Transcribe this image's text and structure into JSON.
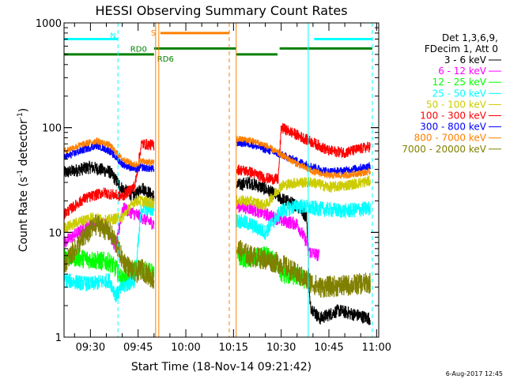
{
  "chart_data": {
    "type": "line",
    "title": "HESSI Observing Summary Count Rates",
    "xlabel": "Start Time (18-Nov-14 09:21:42)",
    "ylabel": "Count Rate (s⁻¹ detector⁻¹)",
    "ylabel_main": "Count Rate (s",
    "ylabel_sup1": "-1",
    "ylabel_mid": " detector",
    "ylabel_sup2": "-1",
    "ylabel_end": ")",
    "yscale": "log",
    "ylim": [
      1,
      1000
    ],
    "xlim": [
      "09:21:42",
      "11:00:40"
    ],
    "xticks": [
      "09:30",
      "09:45",
      "10:00",
      "10:15",
      "10:30",
      "10:45",
      "11:00"
    ],
    "yticks": [
      "1",
      "10",
      "100",
      "1000"
    ],
    "legend": {
      "placement": "right",
      "header1": "Det 1,3,6,9,",
      "header2": "FDecim 1, Att 0"
    },
    "footer": "6-Aug-2017 12:45",
    "flags": [
      {
        "label": "N",
        "color": "#00ffff",
        "segments": [
          [
            "09:21:42",
            "09:38:40"
          ],
          [
            "10:40:20",
            "10:58:40"
          ]
        ],
        "level": 700
      },
      {
        "label": "S",
        "color": "#ff8000",
        "segments": [
          [
            "09:52:00",
            "10:13:40"
          ]
        ],
        "level": 800
      },
      {
        "label": "RD0",
        "color": "#008000",
        "segments": [
          [
            "09:50:00",
            "10:15:50"
          ],
          [
            "10:29:30",
            "10:58:40"
          ]
        ],
        "level": 570
      },
      {
        "label": "RD6",
        "color": "#008000",
        "segments": [
          [
            "09:21:42",
            "09:50:00"
          ],
          [
            "10:15:50",
            "10:28:50"
          ]
        ],
        "level": 500
      }
    ],
    "vlines": [
      {
        "x": "09:38:40",
        "color": "#00ffff",
        "dashed": true
      },
      {
        "x": "09:50:30",
        "color": "#ff8000",
        "dashed": false
      },
      {
        "x": "09:51:30",
        "color": "#ff8000",
        "dashed": false
      },
      {
        "x": "10:13:40",
        "color": "#ff8000",
        "dashed": true
      },
      {
        "x": "10:15:50",
        "color": "#ff8000",
        "dashed": false
      },
      {
        "x": "10:38:30",
        "color": "#00ffff",
        "dashed": false
      },
      {
        "x": "10:58:40",
        "color": "#00ffff",
        "dashed": true
      }
    ],
    "gap": [
      "09:51:30",
      "10:15:50"
    ],
    "series": [
      {
        "name": "3 - 6 keV",
        "color": "#000000",
        "noise": 0.06,
        "seg1": [
          [
            "09:21:42",
            37
          ],
          [
            "09:30",
            42
          ],
          [
            "09:36",
            38
          ],
          [
            "09:40",
            26
          ],
          [
            "09:44",
            22
          ],
          [
            "09:46",
            27
          ],
          [
            "09:50",
            22
          ]
        ],
        "seg2": [
          [
            "10:16",
            28
          ],
          [
            "10:20",
            30
          ],
          [
            "10:25",
            26
          ],
          [
            "10:29",
            22
          ],
          [
            "10:30",
            21
          ],
          [
            "10:35",
            18
          ],
          [
            "10:38",
            14
          ],
          [
            "10:39",
            2
          ],
          [
            "10:42",
            1.5
          ],
          [
            "10:48",
            1.8
          ],
          [
            "10:58",
            1.5
          ]
        ]
      },
      {
        "name": "6 - 12 keV",
        "color": "#ff00ff",
        "noise": 0.06,
        "seg1": [
          [
            "09:21:42",
            8
          ],
          [
            "09:30",
            12
          ],
          [
            "09:35",
            12
          ],
          [
            "09:38",
            7
          ],
          [
            "09:40",
            17
          ],
          [
            "09:44",
            15
          ],
          [
            "09:46",
            14
          ],
          [
            "09:50",
            12
          ]
        ],
        "seg2": [
          [
            "10:16",
            18
          ],
          [
            "10:20",
            17
          ],
          [
            "10:25",
            15
          ],
          [
            "10:30",
            13
          ],
          [
            "10:35",
            12
          ],
          [
            "10:38",
            8
          ],
          [
            "10:39",
            6.5
          ],
          [
            "10:42",
            6
          ]
        ]
      },
      {
        "name": "12 - 25 keV",
        "color": "#00ff00",
        "noise": 0.09,
        "seg1": [
          [
            "09:21:42",
            6
          ],
          [
            "09:30",
            5.5
          ],
          [
            "09:36",
            5.2
          ],
          [
            "09:38",
            4.5
          ],
          [
            "09:40",
            3.5
          ],
          [
            "09:44",
            4.5
          ],
          [
            "09:46",
            4.5
          ],
          [
            "09:50",
            4
          ]
        ],
        "seg2": [
          [
            "10:16",
            6
          ],
          [
            "10:20",
            5.5
          ],
          [
            "10:25",
            6
          ],
          [
            "10:29",
            5
          ],
          [
            "10:30",
            4
          ],
          [
            "10:35",
            3.8
          ],
          [
            "10:38",
            3.5
          ]
        ]
      },
      {
        "name": "25 - 50 keV",
        "color": "#00ffff",
        "noise": 0.07,
        "seg1": [
          [
            "09:21:42",
            3.5
          ],
          [
            "09:30",
            3.2
          ],
          [
            "09:36",
            3.5
          ],
          [
            "09:38",
            2.5
          ],
          [
            "09:40",
            3
          ],
          [
            "09:44",
            3.5
          ],
          [
            "09:46",
            17
          ],
          [
            "09:50",
            17
          ]
        ],
        "seg2": [
          [
            "10:16",
            13
          ],
          [
            "10:20",
            12
          ],
          [
            "10:25",
            10
          ],
          [
            "10:30",
            16
          ],
          [
            "10:35",
            18
          ],
          [
            "10:40",
            17
          ],
          [
            "10:50",
            16
          ],
          [
            "10:58",
            17
          ]
        ]
      },
      {
        "name": "50 - 100 keV",
        "color": "#cccc00",
        "noise": 0.05,
        "seg1": [
          [
            "09:21:42",
            11
          ],
          [
            "09:30",
            14
          ],
          [
            "09:35",
            13
          ],
          [
            "09:40",
            14
          ],
          [
            "09:44",
            20
          ],
          [
            "09:46",
            20
          ],
          [
            "09:50",
            19
          ]
        ],
        "seg2": [
          [
            "10:16",
            20
          ],
          [
            "10:20",
            20
          ],
          [
            "10:25",
            18
          ],
          [
            "10:30",
            28
          ],
          [
            "10:35",
            30
          ],
          [
            "10:40",
            30
          ],
          [
            "10:45",
            27
          ],
          [
            "10:50",
            28
          ],
          [
            "10:58",
            31
          ]
        ]
      },
      {
        "name": "100 - 300 keV",
        "color": "#ff0000",
        "noise": 0.05,
        "seg1": [
          [
            "09:21:42",
            15
          ],
          [
            "09:28",
            21
          ],
          [
            "09:34",
            24
          ],
          [
            "09:40",
            22
          ],
          [
            "09:44",
            28
          ],
          [
            "09:46",
            70
          ],
          [
            "09:50",
            68
          ]
        ],
        "seg2": [
          [
            "10:16",
            40
          ],
          [
            "10:20",
            38
          ],
          [
            "10:25",
            33
          ],
          [
            "10:29",
            32
          ],
          [
            "10:30",
            100
          ],
          [
            "10:35",
            85
          ],
          [
            "10:40",
            72
          ],
          [
            "10:45",
            60
          ],
          [
            "10:50",
            58
          ],
          [
            "10:58",
            66
          ]
        ]
      },
      {
        "name": "300 - 800 keV",
        "color": "#0000ff",
        "noise": 0.035,
        "seg1": [
          [
            "09:21:42",
            52
          ],
          [
            "09:28",
            62
          ],
          [
            "09:32",
            68
          ],
          [
            "09:36",
            60
          ],
          [
            "09:40",
            45
          ],
          [
            "09:44",
            40
          ],
          [
            "09:46",
            42
          ],
          [
            "09:50",
            40
          ]
        ],
        "seg2": [
          [
            "10:16",
            72
          ],
          [
            "10:20",
            70
          ],
          [
            "10:25",
            62
          ],
          [
            "10:30",
            55
          ],
          [
            "10:35",
            48
          ],
          [
            "10:40",
            42
          ],
          [
            "10:45",
            38
          ],
          [
            "10:50",
            39
          ],
          [
            "10:58",
            43
          ]
        ]
      },
      {
        "name": "800 - 7000 keV",
        "color": "#ff8000",
        "noise": 0.03,
        "seg1": [
          [
            "09:21:42",
            60
          ],
          [
            "09:28",
            70
          ],
          [
            "09:32",
            75
          ],
          [
            "09:36",
            68
          ],
          [
            "09:40",
            50
          ],
          [
            "09:44",
            44
          ],
          [
            "09:46",
            48
          ],
          [
            "09:50",
            46
          ]
        ],
        "seg2": [
          [
            "10:16",
            78
          ],
          [
            "10:20",
            76
          ],
          [
            "10:25",
            68
          ],
          [
            "10:30",
            55
          ],
          [
            "10:35",
            45
          ],
          [
            "10:40",
            38
          ],
          [
            "10:45",
            35
          ],
          [
            "10:50",
            35
          ],
          [
            "10:58",
            38
          ]
        ]
      },
      {
        "name": "7000 - 20000 keV",
        "color": "#808000",
        "noise": 0.1,
        "seg1": [
          [
            "09:21:42",
            5
          ],
          [
            "09:28",
            9
          ],
          [
            "09:32",
            12
          ],
          [
            "09:36",
            10
          ],
          [
            "09:38",
            8
          ],
          [
            "09:40",
            5.5
          ],
          [
            "09:44",
            4
          ],
          [
            "09:46",
            4.5
          ],
          [
            "09:50",
            3.5
          ]
        ],
        "seg2": [
          [
            "10:16",
            7
          ],
          [
            "10:20",
            6
          ],
          [
            "10:25",
            5.5
          ],
          [
            "10:30",
            5
          ],
          [
            "10:35",
            4
          ],
          [
            "10:38",
            3.5
          ],
          [
            "10:42",
            3
          ],
          [
            "10:50",
            3.1
          ],
          [
            "10:58",
            3.3
          ]
        ]
      }
    ]
  }
}
